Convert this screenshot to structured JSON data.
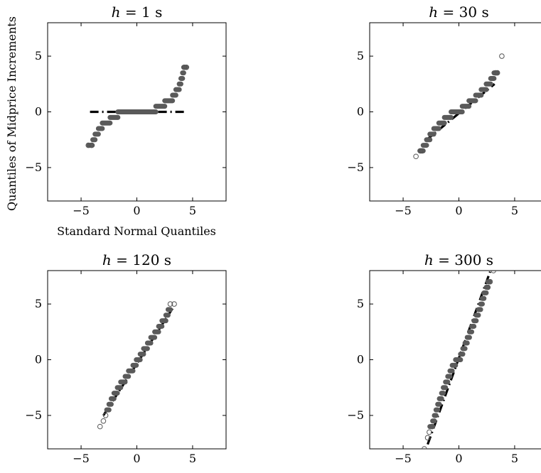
{
  "figure": {
    "ylabel": "Quantiles of Midprice Increments",
    "xlabel": "Standard Normal Quantiles"
  },
  "colors": {
    "point_fill": "#5a5a5a",
    "outlier": "#555555",
    "line": "#000000"
  },
  "chart_data": [
    {
      "type": "scatter",
      "title": "h = 1 s",
      "title_prefix": "h",
      "title_suffix": " = 1 s",
      "xlim": [
        -8,
        8
      ],
      "ylim": [
        -8,
        8
      ],
      "xticks": [
        -5,
        0,
        5
      ],
      "yticks": [
        -5,
        0,
        5
      ],
      "xlabel": "Standard Normal Quantiles",
      "ylabel": "Quantiles of Midprice Increments",
      "reference_line": [
        [
          -4.2,
          0
        ],
        [
          4.3,
          0
        ]
      ],
      "steps": [
        {
          "y": -3,
          "x": [
            -4.3,
            -4.0
          ]
        },
        {
          "y": -2.5,
          "x": [
            -3.95,
            -3.75
          ]
        },
        {
          "y": -2,
          "x": [
            -3.75,
            -3.45
          ]
        },
        {
          "y": -1.5,
          "x": [
            -3.45,
            -3.1
          ]
        },
        {
          "y": -1,
          "x": [
            -3.1,
            -2.4
          ]
        },
        {
          "y": -0.5,
          "x": [
            -2.4,
            -1.7
          ]
        },
        {
          "y": 0,
          "x": [
            -1.7,
            1.7
          ]
        },
        {
          "y": 0.5,
          "x": [
            1.7,
            2.5
          ]
        },
        {
          "y": 1,
          "x": [
            2.5,
            3.2
          ]
        },
        {
          "y": 1.5,
          "x": [
            3.2,
            3.5
          ]
        },
        {
          "y": 2,
          "x": [
            3.5,
            3.8
          ]
        },
        {
          "y": 2.5,
          "x": [
            3.8,
            3.95
          ]
        },
        {
          "y": 3,
          "x": [
            3.95,
            4.1
          ]
        },
        {
          "y": 3.5,
          "x": [
            4.1,
            4.2
          ]
        },
        {
          "y": 4,
          "x": [
            4.2,
            4.4
          ]
        }
      ],
      "outliers": [
        [
          -4.35,
          -3
        ],
        [
          -4.05,
          -3
        ],
        [
          4.25,
          4
        ],
        [
          4.45,
          4
        ]
      ]
    },
    {
      "type": "scatter",
      "title": "h = 30 s",
      "title_prefix": "h",
      "title_suffix": " = 30 s",
      "xlim": [
        -8,
        8
      ],
      "ylim": [
        -8,
        8
      ],
      "xticks": [
        -5,
        0,
        5
      ],
      "yticks": [
        -5,
        0,
        5
      ],
      "xlabel": "",
      "ylabel": "",
      "reference_line": [
        [
          -3.0,
          -2.6
        ],
        [
          3.2,
          2.5
        ]
      ],
      "steps": [
        {
          "y": -3.5,
          "x": [
            -3.5,
            -3.2
          ]
        },
        {
          "y": -3,
          "x": [
            -3.2,
            -2.9
          ]
        },
        {
          "y": -2.5,
          "x": [
            -2.9,
            -2.6
          ]
        },
        {
          "y": -2,
          "x": [
            -2.6,
            -2.25
          ]
        },
        {
          "y": -1.5,
          "x": [
            -2.25,
            -1.8
          ]
        },
        {
          "y": -1,
          "x": [
            -1.8,
            -1.3
          ]
        },
        {
          "y": -0.5,
          "x": [
            -1.3,
            -0.7
          ]
        },
        {
          "y": 0,
          "x": [
            -0.7,
            0.3
          ]
        },
        {
          "y": 0.5,
          "x": [
            0.3,
            0.9
          ]
        },
        {
          "y": 1,
          "x": [
            0.9,
            1.5
          ]
        },
        {
          "y": 1.5,
          "x": [
            1.5,
            2.0
          ]
        },
        {
          "y": 2,
          "x": [
            2.0,
            2.45
          ]
        },
        {
          "y": 2.5,
          "x": [
            2.45,
            2.85
          ]
        },
        {
          "y": 3,
          "x": [
            2.85,
            3.15
          ]
        },
        {
          "y": 3.5,
          "x": [
            3.15,
            3.45
          ]
        }
      ],
      "outliers": [
        [
          -3.85,
          -4
        ],
        [
          -3.45,
          -3.5
        ],
        [
          -3.3,
          -3.5
        ],
        [
          3.3,
          3.5
        ],
        [
          3.45,
          3.5
        ],
        [
          3.85,
          5
        ]
      ]
    },
    {
      "type": "scatter",
      "title": "h = 120 s",
      "title_prefix": "h",
      "title_suffix": " = 120 s",
      "xlim": [
        -8,
        8
      ],
      "ylim": [
        -8,
        8
      ],
      "xticks": [
        -5,
        0,
        5
      ],
      "yticks": [
        -5,
        0,
        5
      ],
      "xlabel": "",
      "ylabel": "",
      "reference_line": [
        [
          -3.0,
          -5.0
        ],
        [
          3.2,
          4.6
        ]
      ],
      "steps": [
        {
          "y": -4.5,
          "x": [
            -2.7,
            -2.5
          ]
        },
        {
          "y": -4,
          "x": [
            -2.5,
            -2.3
          ]
        },
        {
          "y": -3.5,
          "x": [
            -2.3,
            -2.05
          ]
        },
        {
          "y": -3,
          "x": [
            -2.05,
            -1.75
          ]
        },
        {
          "y": -2.5,
          "x": [
            -1.75,
            -1.45
          ]
        },
        {
          "y": -2,
          "x": [
            -1.45,
            -1.05
          ]
        },
        {
          "y": -1.5,
          "x": [
            -1.05,
            -0.75
          ]
        },
        {
          "y": -1,
          "x": [
            -0.75,
            -0.35
          ]
        },
        {
          "y": -0.5,
          "x": [
            -0.35,
            -0.05
          ]
        },
        {
          "y": 0,
          "x": [
            -0.05,
            0.3
          ]
        },
        {
          "y": 0.5,
          "x": [
            0.3,
            0.6
          ]
        },
        {
          "y": 1,
          "x": [
            0.6,
            0.95
          ]
        },
        {
          "y": 1.5,
          "x": [
            0.95,
            1.25
          ]
        },
        {
          "y": 2,
          "x": [
            1.25,
            1.6
          ]
        },
        {
          "y": 2.5,
          "x": [
            1.6,
            1.95
          ]
        },
        {
          "y": 3,
          "x": [
            1.95,
            2.25
          ]
        },
        {
          "y": 3.5,
          "x": [
            2.25,
            2.6
          ]
        },
        {
          "y": 4,
          "x": [
            2.6,
            2.8
          ]
        },
        {
          "y": 4.5,
          "x": [
            2.8,
            3.0
          ]
        }
      ],
      "outliers": [
        [
          -3.3,
          -6
        ],
        [
          -3.0,
          -5.5
        ],
        [
          -2.8,
          -5
        ],
        [
          3.0,
          5
        ],
        [
          3.35,
          5
        ]
      ]
    },
    {
      "type": "scatter",
      "title": "h = 300 s",
      "title_prefix": "h",
      "title_suffix": " = 300 s",
      "xlim": [
        -8,
        8
      ],
      "ylim": [
        -8,
        8
      ],
      "xticks": [
        -5,
        0,
        5
      ],
      "yticks": [
        -5,
        0,
        5
      ],
      "xlabel": "",
      "ylabel": "",
      "reference_line": [
        [
          -2.8,
          -7.6
        ],
        [
          2.8,
          7.9
        ]
      ],
      "steps": [
        {
          "y": -6,
          "x": [
            -2.6,
            -2.35
          ]
        },
        {
          "y": -5.5,
          "x": [
            -2.35,
            -2.2
          ]
        },
        {
          "y": -5,
          "x": [
            -2.2,
            -2.05
          ]
        },
        {
          "y": -4.5,
          "x": [
            -2.05,
            -1.9
          ]
        },
        {
          "y": -4,
          "x": [
            -1.9,
            -1.75
          ]
        },
        {
          "y": -3.5,
          "x": [
            -1.75,
            -1.55
          ]
        },
        {
          "y": -3,
          "x": [
            -1.55,
            -1.4
          ]
        },
        {
          "y": -2.5,
          "x": [
            -1.4,
            -1.2
          ]
        },
        {
          "y": -2,
          "x": [
            -1.2,
            -1.0
          ]
        },
        {
          "y": -1.5,
          "x": [
            -1.0,
            -0.8
          ]
        },
        {
          "y": -1,
          "x": [
            -0.8,
            -0.6
          ]
        },
        {
          "y": -0.5,
          "x": [
            -0.6,
            -0.3
          ]
        },
        {
          "y": 0,
          "x": [
            -0.3,
            0.15
          ]
        },
        {
          "y": 0.5,
          "x": [
            0.15,
            0.35
          ]
        },
        {
          "y": 1,
          "x": [
            0.35,
            0.55
          ]
        },
        {
          "y": 1.5,
          "x": [
            0.55,
            0.75
          ]
        },
        {
          "y": 2,
          "x": [
            0.75,
            0.95
          ]
        },
        {
          "y": 2.5,
          "x": [
            0.95,
            1.15
          ]
        },
        {
          "y": 3,
          "x": [
            1.15,
            1.35
          ]
        },
        {
          "y": 3.5,
          "x": [
            1.35,
            1.55
          ]
        },
        {
          "y": 4,
          "x": [
            1.55,
            1.75
          ]
        },
        {
          "y": 4.5,
          "x": [
            1.75,
            1.95
          ]
        },
        {
          "y": 5,
          "x": [
            1.95,
            2.1
          ]
        },
        {
          "y": 5.5,
          "x": [
            2.1,
            2.25
          ]
        },
        {
          "y": 6,
          "x": [
            2.25,
            2.45
          ]
        },
        {
          "y": 6.5,
          "x": [
            2.45,
            2.6
          ]
        },
        {
          "y": 7,
          "x": [
            2.6,
            2.75
          ]
        }
      ],
      "outliers": [
        [
          -2.8,
          -7
        ],
        [
          -2.65,
          -6.5
        ],
        [
          -2.4,
          -6
        ],
        [
          2.6,
          6.5
        ],
        [
          2.8,
          7
        ],
        [
          3.1,
          8
        ],
        [
          -3.1,
          -8
        ]
      ]
    }
  ]
}
